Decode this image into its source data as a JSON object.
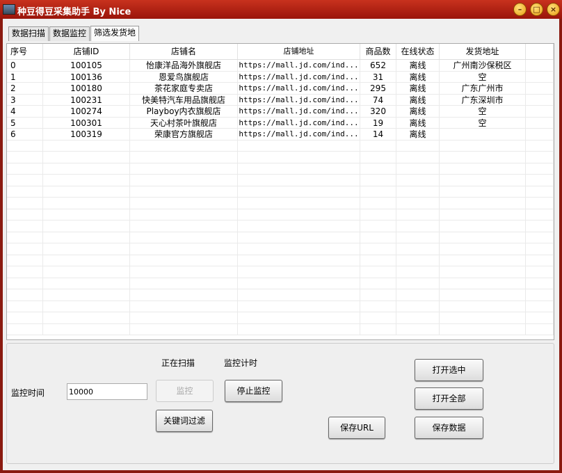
{
  "window": {
    "title": "种豆得豆采集助手   By Nice",
    "colors": {
      "titlebar": "#b02010",
      "accent": "#e89a10"
    }
  },
  "tabs": [
    {
      "label": "数据扫描"
    },
    {
      "label": "数据监控"
    },
    {
      "label": "筛选发货地"
    }
  ],
  "active_tab": "筛选发货地",
  "table": {
    "columns": [
      "序号",
      "店铺ID",
      "店铺名",
      "店铺地址",
      "商品数",
      "在线状态",
      "发货地址"
    ],
    "rows": [
      [
        "0",
        "100105",
        "怡康洋品海外旗舰店",
        "https://mall.jd.com/ind...",
        "652",
        "离线",
        "广州南沙保税区"
      ],
      [
        "1",
        "100136",
        "恩爱鸟旗舰店",
        "https://mall.jd.com/ind...",
        "31",
        "离线",
        "空"
      ],
      [
        "2",
        "100180",
        "茶花家庭专卖店",
        "https://mall.jd.com/ind...",
        "295",
        "离线",
        "广东广州市"
      ],
      [
        "3",
        "100231",
        "快美特汽车用品旗舰店",
        "https://mall.jd.com/ind...",
        "74",
        "离线",
        "广东深圳市"
      ],
      [
        "4",
        "100274",
        "Playboy内衣旗舰店",
        "https://mall.jd.com/ind...",
        "320",
        "离线",
        "空"
      ],
      [
        "5",
        "100301",
        "天心村茶叶旗舰店",
        "https://mall.jd.com/ind...",
        "19",
        "离线",
        "空"
      ],
      [
        "6",
        "100319",
        "荣康官方旗舰店",
        "https://mall.jd.com/ind...",
        "14",
        "离线",
        ""
      ]
    ]
  },
  "controls": {
    "scanning_label": "正在扫描",
    "timer_label": "监控计时",
    "monitor_time_label": "监控时间",
    "monitor_time_value": "10000",
    "monitor_button": "监控",
    "stop_monitor_button": "停止监控",
    "keyword_filter_button": "关键词过滤",
    "save_url_button": "保存URL",
    "open_selected_button": "打开选中",
    "open_all_button": "打开全部",
    "save_data_button": "保存数据"
  }
}
